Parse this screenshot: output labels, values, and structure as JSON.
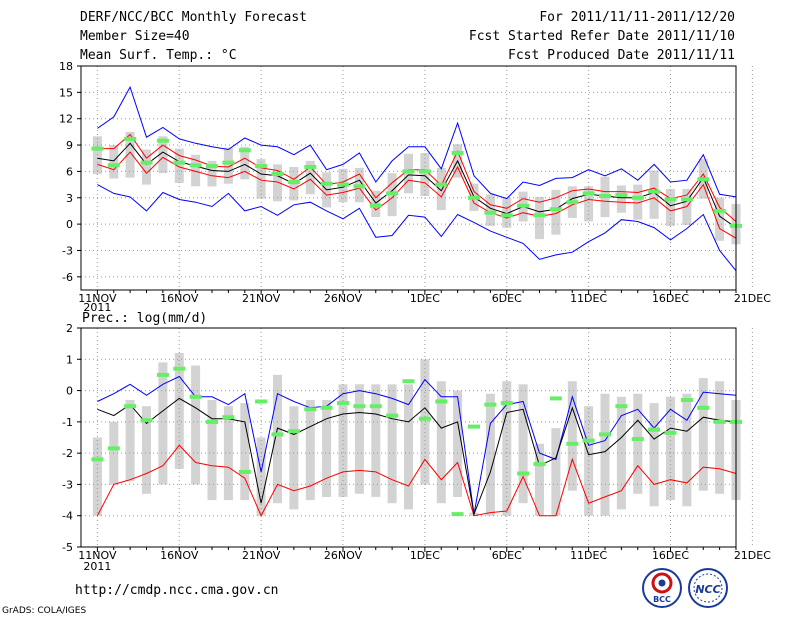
{
  "header": {
    "title": "DERF/NCC/BCC Monthly Forecast",
    "member_size": "Member Size=40",
    "variable": "Mean Surf. Temp.: °C",
    "period": "For 2011/11/11-2011/12/20",
    "started": "Fcst Started Refer Date 2011/11/10",
    "produced": "Fcst Produced Date 2011/11/11"
  },
  "footer": {
    "url": "http://cmdp.ncc.cma.gov.cn",
    "credit": "GrADS: COLA/IGES",
    "logo_bcc": "BCC",
    "logo_ncc": "NCC"
  },
  "colors": {
    "max_line": "#0000ff",
    "min_line": "#ff0000",
    "mean_line": "#000000",
    "box": "#d3d3d3",
    "marker": "#66ee66",
    "grid": "#999999"
  },
  "chart_data": [
    {
      "type": "line",
      "title": "Mean Surf. Temp.: °C",
      "ylim": [
        -7.5,
        18
      ],
      "yticks": [
        -6,
        -3,
        0,
        3,
        6,
        9,
        12,
        15,
        18
      ],
      "x_tick_labels": [
        "11NOV",
        "16NOV",
        "21NOV",
        "26NOV",
        "1DEC",
        "6DEC",
        "11DEC",
        "16DEC",
        "21DEC"
      ],
      "x_tick_sublabel": "2011",
      "days": 40,
      "series": [
        {
          "name": "max",
          "values": [
            10.9,
            12.2,
            15.6,
            9.9,
            11.0,
            9.7,
            9.2,
            8.8,
            8.5,
            9.8,
            9.0,
            8.8,
            7.9,
            9.0,
            6.2,
            6.8,
            8.1,
            4.8,
            7.2,
            8.8,
            8.8,
            6.3,
            11.5,
            5.5,
            3.5,
            2.9,
            4.8,
            4.4,
            5.2,
            5.3,
            6.2,
            5.5,
            6.3,
            5.0,
            6.8,
            4.8,
            5.0,
            7.9,
            3.4,
            3.1
          ]
        },
        {
          "name": "upper",
          "values": [
            8.6,
            8.6,
            10.2,
            7.5,
            9.0,
            7.8,
            7.3,
            6.6,
            6.5,
            7.5,
            6.4,
            6.1,
            5.1,
            6.5,
            4.5,
            4.8,
            5.7,
            3.0,
            4.7,
            6.2,
            6.2,
            4.4,
            8.3,
            3.7,
            2.2,
            1.8,
            2.9,
            2.5,
            3.0,
            3.8,
            4.0,
            3.7,
            3.7,
            3.6,
            4.1,
            2.9,
            3.3,
            5.7,
            1.9,
            0.3
          ]
        },
        {
          "name": "mean",
          "values": [
            7.5,
            7.2,
            9.2,
            6.8,
            8.2,
            7.1,
            6.6,
            6.1,
            6.0,
            6.8,
            5.7,
            5.5,
            4.6,
            5.8,
            3.9,
            4.2,
            5.0,
            2.4,
            3.8,
            5.6,
            5.5,
            3.8,
            7.2,
            3.1,
            1.8,
            1.2,
            2.0,
            1.4,
            1.7,
            2.9,
            3.4,
            3.2,
            3.0,
            3.0,
            3.6,
            2.1,
            2.6,
            5.3,
            0.9,
            -0.4
          ]
        },
        {
          "name": "lower",
          "values": [
            6.8,
            6.2,
            8.2,
            5.8,
            7.6,
            6.5,
            6.0,
            5.5,
            5.3,
            6.0,
            5.0,
            4.8,
            4.0,
            5.1,
            3.3,
            3.6,
            4.1,
            1.6,
            3.0,
            5.0,
            4.7,
            3.1,
            6.5,
            2.4,
            1.3,
            0.7,
            1.3,
            0.9,
            1.2,
            2.2,
            2.8,
            2.6,
            2.5,
            2.4,
            3.0,
            1.5,
            2.0,
            4.5,
            -0.5,
            -1.6
          ]
        },
        {
          "name": "min",
          "values": [
            4.5,
            3.5,
            3.1,
            1.5,
            3.6,
            2.8,
            2.5,
            2.0,
            3.5,
            1.5,
            2.0,
            1.0,
            2.2,
            2.5,
            1.5,
            0.6,
            1.8,
            -1.5,
            -1.3,
            1.0,
            0.8,
            -1.4,
            1.1,
            0.2,
            -0.8,
            -1.5,
            -2.2,
            -4.0,
            -3.5,
            -3.2,
            -2.0,
            -1.0,
            0.5,
            0.3,
            -0.4,
            -1.8,
            -0.5,
            1.1,
            -3.0,
            -5.3
          ]
        },
        {
          "name": "marker",
          "values": [
            8.6,
            6.7,
            9.7,
            7.0,
            9.5,
            7.0,
            6.7,
            6.6,
            7.0,
            8.4,
            6.6,
            5.7,
            4.8,
            6.5,
            4.6,
            4.5,
            4.3,
            2.1,
            3.5,
            6.0,
            6.0,
            4.5,
            8.1,
            3.0,
            1.3,
            1.0,
            2.1,
            1.0,
            1.7,
            2.5,
            3.5,
            3.2,
            3.3,
            3.0,
            3.7,
            2.8,
            2.8,
            5.1,
            1.5,
            -0.2
          ]
        },
        {
          "name": "box_top",
          "values": [
            10.0,
            9.0,
            10.5,
            8.5,
            10.0,
            8.6,
            7.9,
            7.2,
            8.7,
            8.8,
            7.4,
            6.8,
            6.5,
            7.2,
            5.9,
            6.3,
            6.4,
            3.8,
            5.8,
            8.0,
            8.1,
            6.4,
            9.1,
            4.6,
            3.4,
            3.0,
            3.7,
            3.1,
            3.9,
            4.3,
            4.3,
            5.4,
            4.4,
            4.5,
            6.1,
            4.0,
            4.0,
            7.4,
            3.0,
            2.3
          ]
        },
        {
          "name": "box_bottom",
          "values": [
            5.7,
            5.2,
            5.3,
            4.5,
            5.8,
            4.7,
            4.3,
            4.3,
            4.6,
            5.1,
            2.9,
            2.6,
            2.7,
            3.4,
            1.9,
            2.5,
            2.5,
            0.8,
            0.9,
            3.5,
            3.2,
            1.6,
            5.3,
            1.5,
            -0.2,
            -0.4,
            0.3,
            -1.7,
            -1.2,
            0.7,
            0.3,
            0.8,
            1.3,
            0.5,
            0.6,
            -0.2,
            -0.1,
            2.9,
            -1.9,
            -2.3
          ]
        }
      ]
    },
    {
      "type": "line",
      "title": "Prec.: log(mm/d)",
      "ylim": [
        -5,
        2
      ],
      "yticks": [
        -5,
        -4,
        -3,
        -2,
        -1,
        0,
        1,
        2
      ],
      "x_tick_labels": [
        "11NOV",
        "16NOV",
        "21NOV",
        "26NOV",
        "1DEC",
        "6DEC",
        "11DEC",
        "16DEC",
        "21DEC"
      ],
      "x_tick_sublabel": "2011",
      "days": 40,
      "series": [
        {
          "name": "max",
          "values": [
            -0.35,
            -0.1,
            0.2,
            -0.15,
            0.2,
            0.45,
            -0.2,
            -0.2,
            -0.45,
            -0.1,
            -2.6,
            -0.1,
            -0.35,
            -0.55,
            -0.5,
            -0.1,
            0.0,
            -0.1,
            -0.25,
            -0.45,
            0.35,
            -0.2,
            -0.2,
            -3.95,
            -1.05,
            -0.45,
            -0.35,
            -2.0,
            -2.2,
            -0.2,
            -1.75,
            -1.6,
            -0.8,
            -0.6,
            -1.2,
            -0.6,
            -0.95,
            -0.05,
            -0.1,
            -0.15
          ]
        },
        {
          "name": "mean",
          "values": [
            -0.6,
            -0.8,
            -0.45,
            -1.05,
            -0.65,
            -0.25,
            -0.55,
            -0.9,
            -0.9,
            -1.0,
            -3.6,
            -1.2,
            -1.4,
            -1.15,
            -0.9,
            -0.75,
            -0.7,
            -0.75,
            -0.9,
            -1.0,
            -0.55,
            -1.2,
            -1.0,
            -3.95,
            -2.6,
            -0.7,
            -0.6,
            -2.4,
            -2.15,
            -0.55,
            -2.05,
            -1.95,
            -1.5,
            -0.95,
            -1.55,
            -1.2,
            -1.3,
            -0.85,
            -0.95,
            -1.0
          ]
        },
        {
          "name": "min",
          "values": [
            -4.0,
            -3.0,
            -2.85,
            -2.65,
            -2.4,
            -1.75,
            -2.3,
            -2.4,
            -2.45,
            -2.8,
            -4.0,
            -3.0,
            -3.2,
            -3.05,
            -2.8,
            -2.6,
            -2.55,
            -2.6,
            -2.85,
            -3.05,
            -2.2,
            -2.85,
            -2.3,
            -4.0,
            -3.9,
            -3.85,
            -2.75,
            -4.0,
            -4.0,
            -2.2,
            -3.6,
            -3.4,
            -3.2,
            -2.4,
            -3.0,
            -2.85,
            -2.95,
            -2.45,
            -2.5,
            -2.65
          ]
        },
        {
          "name": "marker",
          "values": [
            -2.2,
            -1.85,
            -0.5,
            -0.95,
            0.5,
            0.7,
            -0.2,
            -1.0,
            -0.85,
            -2.6,
            -0.35,
            -1.4,
            -1.3,
            -0.6,
            -0.55,
            -0.4,
            -0.5,
            -0.5,
            -0.8,
            0.3,
            -0.9,
            -0.35,
            -3.95,
            -1.15,
            -0.45,
            -0.4,
            -2.65,
            -2.35,
            -0.25,
            -1.7,
            -1.6,
            -1.4,
            -0.5,
            -1.55,
            -1.25,
            -1.35,
            -0.3,
            -0.55,
            -1.0,
            -1.0
          ]
        },
        {
          "name": "box_top",
          "values": [
            -1.5,
            -1.0,
            -0.3,
            -0.5,
            0.9,
            1.2,
            0.8,
            -0.3,
            -0.5,
            -0.4,
            -1.5,
            0.5,
            -0.5,
            -0.3,
            -0.3,
            0.2,
            0.2,
            0.2,
            0.2,
            0.2,
            1.0,
            0.3,
            0.0,
            -3.9,
            -0.1,
            0.3,
            0.2,
            -1.7,
            -1.2,
            0.3,
            -0.5,
            -0.1,
            -0.2,
            -0.1,
            -0.4,
            -0.2,
            -0.1,
            0.4,
            0.3,
            -0.3
          ]
        },
        {
          "name": "box_bottom",
          "values": [
            -4.0,
            -3.0,
            -2.9,
            -3.3,
            -3.0,
            -2.5,
            -3.0,
            -3.5,
            -3.5,
            -3.5,
            -4.0,
            -3.6,
            -3.8,
            -3.5,
            -3.4,
            -3.4,
            -3.3,
            -3.4,
            -3.6,
            -3.8,
            -3.0,
            -3.6,
            -3.4,
            -4.0,
            -4.0,
            -4.0,
            -3.6,
            -4.0,
            -4.0,
            -3.2,
            -4.0,
            -4.0,
            -3.8,
            -3.3,
            -3.7,
            -3.5,
            -3.7,
            -3.2,
            -3.3,
            -3.5
          ]
        }
      ]
    }
  ]
}
